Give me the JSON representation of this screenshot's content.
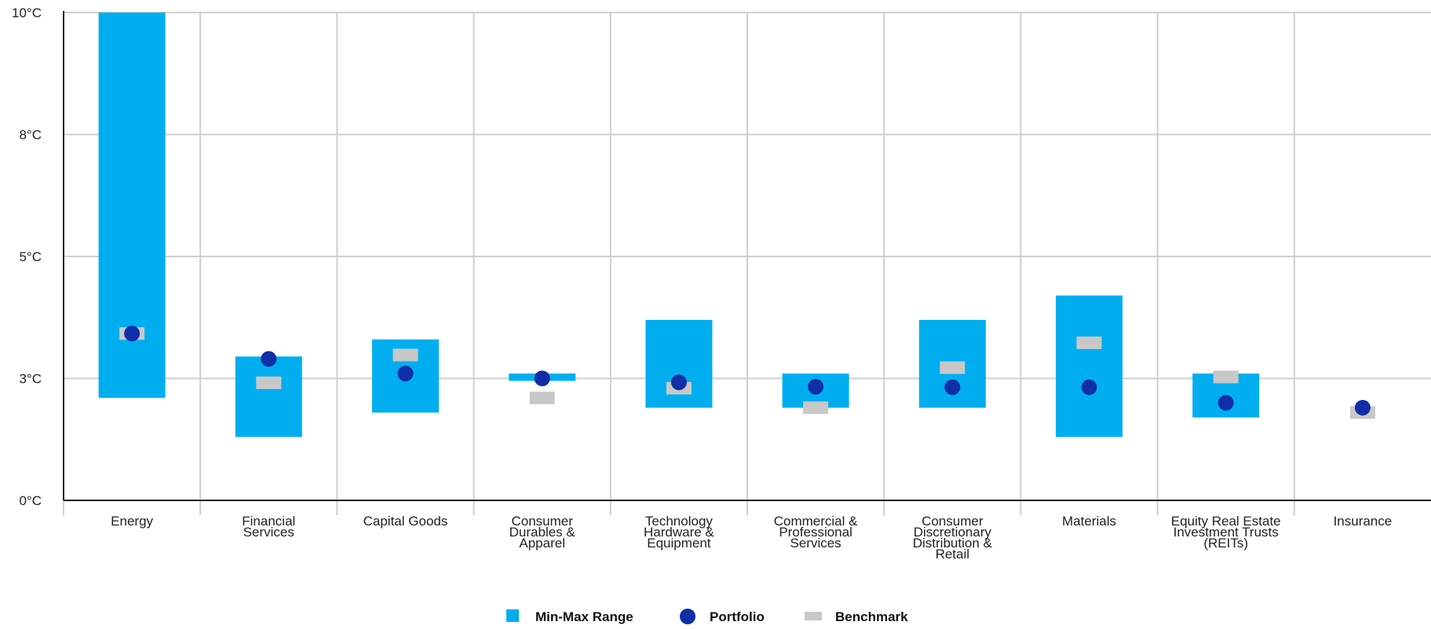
{
  "chart_data": {
    "type": "range",
    "title": "",
    "xlabel": "",
    "ylabel": "",
    "y_unit": "°C",
    "ylim": [
      0,
      10
    ],
    "grid": true,
    "legend_position": "bottom-center",
    "y_ticks": [
      {
        "value": 0,
        "label": "0°C"
      },
      {
        "value": 2.5,
        "label": "3°C"
      },
      {
        "value": 5,
        "label": "5°C"
      },
      {
        "value": 7.5,
        "label": "8°C"
      },
      {
        "value": 10,
        "label": "10°C"
      }
    ],
    "categories": [
      {
        "name": "Energy",
        "label_lines": [
          "Energy"
        ]
      },
      {
        "name": "Financial Services",
        "label_lines": [
          "Financial",
          "Services"
        ]
      },
      {
        "name": "Capital Goods",
        "label_lines": [
          "Capital Goods"
        ]
      },
      {
        "name": "Consumer Durables & Apparel",
        "label_lines": [
          "Consumer",
          "Durables &",
          "Apparel"
        ]
      },
      {
        "name": "Technology Hardware & Equipment",
        "label_lines": [
          "Technology",
          "Hardware &",
          "Equipment"
        ]
      },
      {
        "name": "Commercial & Professional Services",
        "label_lines": [
          "Commercial &",
          "Professional",
          "Services"
        ]
      },
      {
        "name": "Consumer Discretionary Distribution & Retail",
        "label_lines": [
          "Consumer",
          "Discretionary",
          "Distribution &",
          "Retail"
        ]
      },
      {
        "name": "Materials",
        "label_lines": [
          "Materials"
        ]
      },
      {
        "name": "Equity Real Estate Investment Trusts (REITs)",
        "label_lines": [
          "Equity Real Estate",
          "Investment Trusts",
          "(REITs)"
        ]
      },
      {
        "name": "Insurance",
        "label_lines": [
          "Insurance"
        ]
      }
    ],
    "series": [
      {
        "name": "Min-Max Range",
        "type": "range_bar",
        "color": "#00aeef",
        "ranges": [
          [
            2.1,
            10
          ],
          [
            1.3,
            2.95
          ],
          [
            1.8,
            3.3
          ],
          [
            2.45,
            2.6
          ],
          [
            1.9,
            3.7
          ],
          [
            1.9,
            2.6
          ],
          [
            1.9,
            3.7
          ],
          [
            1.3,
            4.2
          ],
          [
            1.7,
            2.6
          ],
          null
        ]
      },
      {
        "name": "Portfolio",
        "type": "point",
        "color": "#0f2ea8",
        "values": [
          3.42,
          2.9,
          2.6,
          2.5,
          2.42,
          2.33,
          2.32,
          2.32,
          2.0,
          1.9
        ]
      },
      {
        "name": "Benchmark",
        "type": "marker",
        "color": "#c8c8c8",
        "values": [
          3.42,
          2.41,
          2.98,
          2.1,
          2.3,
          1.9,
          2.72,
          3.23,
          2.53,
          1.8
        ]
      }
    ]
  }
}
